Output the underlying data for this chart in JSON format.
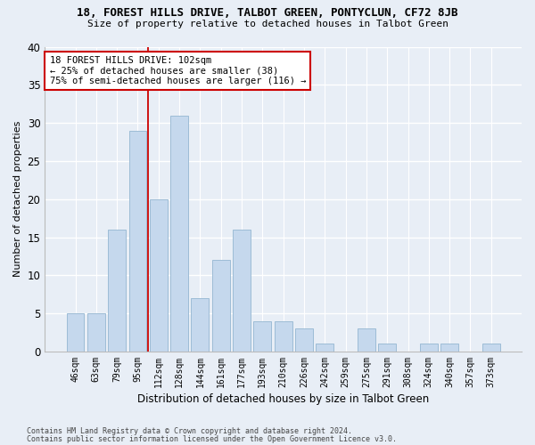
{
  "title_line1": "18, FOREST HILLS DRIVE, TALBOT GREEN, PONTYCLUN, CF72 8JB",
  "title_line2": "Size of property relative to detached houses in Talbot Green",
  "xlabel": "Distribution of detached houses by size in Talbot Green",
  "ylabel": "Number of detached properties",
  "categories": [
    "46sqm",
    "63sqm",
    "79sqm",
    "95sqm",
    "112sqm",
    "128sqm",
    "144sqm",
    "161sqm",
    "177sqm",
    "193sqm",
    "210sqm",
    "226sqm",
    "242sqm",
    "259sqm",
    "275sqm",
    "291sqm",
    "308sqm",
    "324sqm",
    "340sqm",
    "357sqm",
    "373sqm"
  ],
  "values": [
    5,
    5,
    16,
    29,
    20,
    31,
    7,
    12,
    16,
    4,
    4,
    3,
    1,
    0,
    3,
    1,
    0,
    1,
    1,
    0,
    1
  ],
  "bar_color": "#c5d8ed",
  "bar_edge_color": "#9dbcd6",
  "ylim": [
    0,
    40
  ],
  "yticks": [
    0,
    5,
    10,
    15,
    20,
    25,
    30,
    35,
    40
  ],
  "property_label": "18 FOREST HILLS DRIVE: 102sqm",
  "annotation_line1": "← 25% of detached houses are smaller (38)",
  "annotation_line2": "75% of semi-detached houses are larger (116) →",
  "vline_x_index": 3.5,
  "box_color": "#cc0000",
  "footer_line1": "Contains HM Land Registry data © Crown copyright and database right 2024.",
  "footer_line2": "Contains public sector information licensed under the Open Government Licence v3.0.",
  "bg_color": "#e8eef6",
  "plot_bg_color": "#e8eef6",
  "grid_color": "#ffffff"
}
